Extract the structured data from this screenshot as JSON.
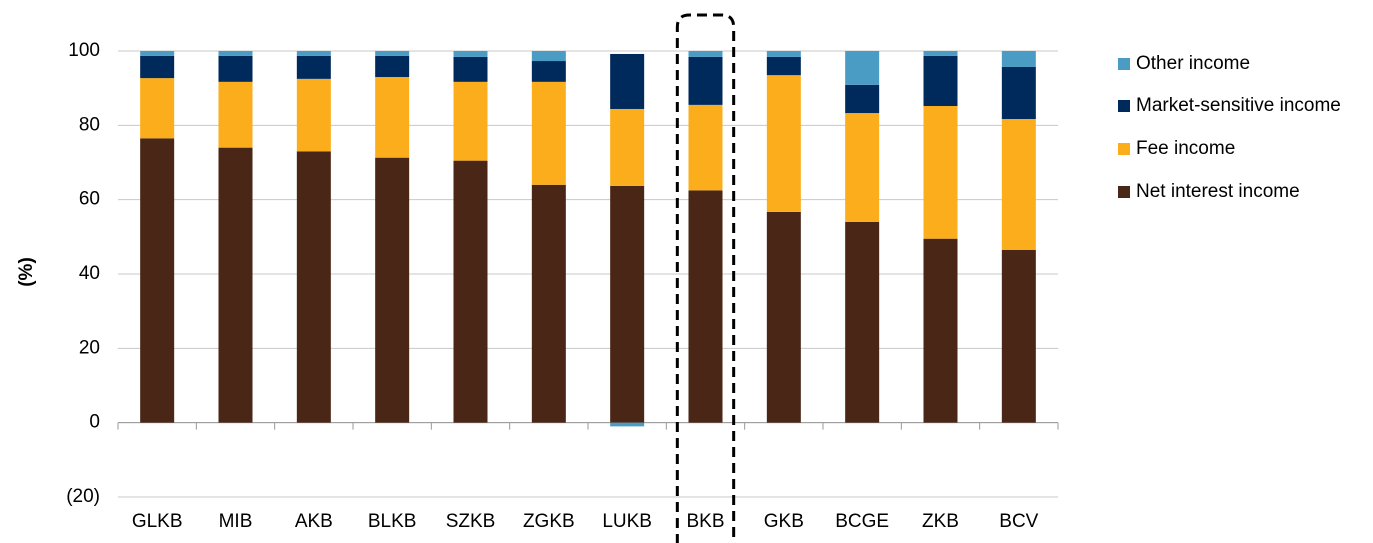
{
  "chart_data": {
    "type": "stacked_bar",
    "y_label": "(%)",
    "categories": [
      "GLKB",
      "MIB",
      "AKB",
      "BLKB",
      "SZKB",
      "ZGKB",
      "LUKB",
      "BKB",
      "GKB",
      "BCGE",
      "ZKB",
      "BCV"
    ],
    "series": [
      {
        "name": "Net interest income",
        "color": "#4a2616",
        "values": [
          76.5,
          74,
          73,
          71.3,
          70.5,
          64,
          63.7,
          62.5,
          56.7,
          54,
          49.5,
          46.5
        ]
      },
      {
        "name": "Fee income",
        "color": "#fbad1b",
        "values": [
          16.2,
          17.7,
          19.5,
          21.7,
          21.2,
          27.7,
          20.7,
          23,
          36.8,
          29.3,
          35.7,
          35.2
        ]
      },
      {
        "name": "Market-sensitive income",
        "color": "#002a5c",
        "values": [
          6,
          7,
          6.2,
          5.7,
          6.7,
          5.6,
          14.8,
          12.9,
          4.9,
          7.6,
          13.5,
          14
        ]
      },
      {
        "name": "Other income",
        "color": "#4a9cc4",
        "values": [
          1.3,
          1.3,
          1.3,
          1.3,
          1.6,
          2.7,
          -1,
          1.6,
          1.6,
          9.1,
          1.3,
          4.3
        ]
      }
    ],
    "ylim": [
      -20,
      100
    ],
    "yticks": [
      {
        "value": -20,
        "label": "(20)"
      },
      0,
      20,
      40,
      60,
      80,
      100
    ],
    "grid": true,
    "legend": "right",
    "highlight_index": 7
  }
}
